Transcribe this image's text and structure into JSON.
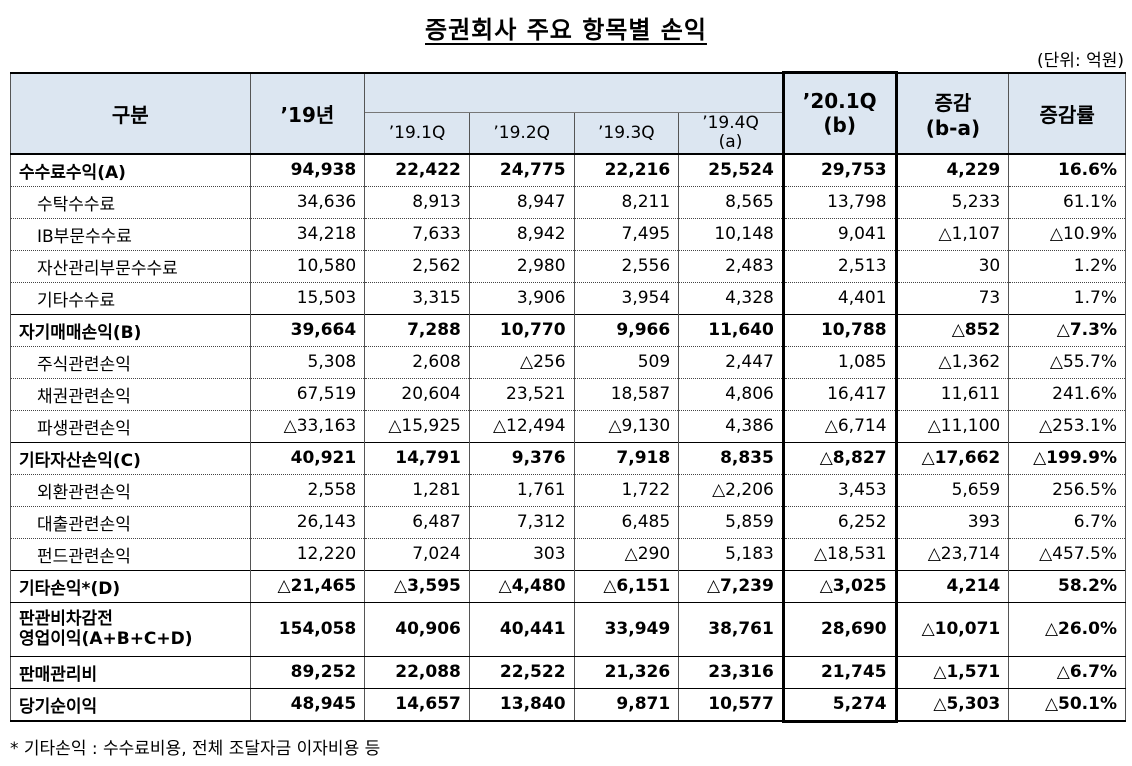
{
  "title": "증권회사 주요 항목별 손익",
  "unit": "(단위: 억원)",
  "header": {
    "category": "구분",
    "y2019": "’19년",
    "q1": "’19.1Q",
    "q2": "’19.2Q",
    "q3": "’19.3Q",
    "q4_line1": "’19.4Q",
    "q4_line2": "(a)",
    "q20_line1": "’20.1Q",
    "q20_line2": "(b)",
    "diff_line1": "증감",
    "diff_line2": "(b-a)",
    "rate": "증감률"
  },
  "rows": [
    {
      "label": "수수료수익(A)",
      "values": [
        "94,938",
        "22,422",
        "24,775",
        "22,216",
        "25,524",
        "29,753",
        "4,229",
        "16.6%"
      ]
    },
    {
      "label": "수탁수수료",
      "values": [
        "34,636",
        "8,913",
        "8,947",
        "8,211",
        "8,565",
        "13,798",
        "5,233",
        "61.1%"
      ]
    },
    {
      "label": "IB부문수수료",
      "values": [
        "34,218",
        "7,633",
        "8,942",
        "7,495",
        "10,148",
        "9,041",
        "△1,107",
        "△10.9%"
      ]
    },
    {
      "label": "자산관리부문수수료",
      "values": [
        "10,580",
        "2,562",
        "2,980",
        "2,556",
        "2,483",
        "2,513",
        "30",
        "1.2%"
      ]
    },
    {
      "label": "기타수수료",
      "values": [
        "15,503",
        "3,315",
        "3,906",
        "3,954",
        "4,328",
        "4,401",
        "73",
        "1.7%"
      ]
    },
    {
      "label": "자기매매손익(B)",
      "values": [
        "39,664",
        "7,288",
        "10,770",
        "9,966",
        "11,640",
        "10,788",
        "△852",
        "△7.3%"
      ]
    },
    {
      "label": "주식관련손익",
      "values": [
        "5,308",
        "2,608",
        "△256",
        "509",
        "2,447",
        "1,085",
        "△1,362",
        "△55.7%"
      ]
    },
    {
      "label": "채권관련손익",
      "values": [
        "67,519",
        "20,604",
        "23,521",
        "18,587",
        "4,806",
        "16,417",
        "11,611",
        "241.6%"
      ]
    },
    {
      "label": "파생관련손익",
      "values": [
        "△33,163",
        "△15,925",
        "△12,494",
        "△9,130",
        "4,386",
        "△6,714",
        "△11,100",
        "△253.1%"
      ]
    },
    {
      "label": "기타자산손익(C)",
      "values": [
        "40,921",
        "14,791",
        "9,376",
        "7,918",
        "8,835",
        "△8,827",
        "△17,662",
        "△199.9%"
      ]
    },
    {
      "label": "외환관련손익",
      "values": [
        "2,558",
        "1,281",
        "1,761",
        "1,722",
        "△2,206",
        "3,453",
        "5,659",
        "256.5%"
      ]
    },
    {
      "label": "대출관련손익",
      "values": [
        "26,143",
        "6,487",
        "7,312",
        "6,485",
        "5,859",
        "6,252",
        "393",
        "6.7%"
      ]
    },
    {
      "label": "펀드관련손익",
      "values": [
        "12,220",
        "7,024",
        "303",
        "△290",
        "5,183",
        "△18,531",
        "△23,714",
        "△457.5%"
      ]
    },
    {
      "label": "기타손익*(D)",
      "values": [
        "△21,465",
        "△3,595",
        "△4,480",
        "△6,151",
        "△7,239",
        "△3,025",
        "4,214",
        "58.2%"
      ]
    },
    {
      "label_line1": "판관비차감전",
      "label_line2": "영업이익(A+B+C+D)",
      "values": [
        "154,058",
        "40,906",
        "40,441",
        "33,949",
        "38,761",
        "28,690",
        "△10,071",
        "△26.0%"
      ]
    },
    {
      "label": "판매관리비",
      "values": [
        "89,252",
        "22,088",
        "22,522",
        "21,326",
        "23,316",
        "21,745",
        "△1,571",
        "△6.7%"
      ]
    },
    {
      "label": "당기순이익",
      "values": [
        "48,945",
        "14,657",
        "13,840",
        "9,871",
        "10,577",
        "5,274",
        "△5,303",
        "△50.1%"
      ]
    }
  ],
  "footnote": "* 기타손익 : 수수료비용, 전체 조달자금 이자비용 등"
}
